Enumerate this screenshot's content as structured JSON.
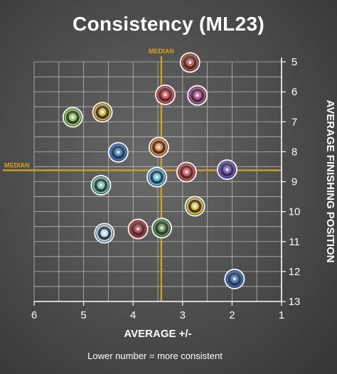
{
  "chart_data": {
    "type": "scatter",
    "title": "Consistency (ML23)",
    "xlabel": "AVERAGE +/-",
    "ylabel": "AVERAGE FINISHING POSITION",
    "note": "Lower number = more consistent",
    "xlim": [
      6,
      1
    ],
    "ylim": [
      13,
      5
    ],
    "x_ticks": [
      "6",
      "5",
      "4",
      "3",
      "2",
      "1"
    ],
    "y_ticks": [
      "5",
      "6",
      "7",
      "8",
      "9",
      "10",
      "11",
      "12",
      "13"
    ],
    "grid": true,
    "median": {
      "x": 3.43,
      "y": 8.62,
      "label": "MEDIAN"
    },
    "points": [
      {
        "x": 2.85,
        "y": 5.02,
        "color": "#c0392b",
        "icon": "helmet-icon"
      },
      {
        "x": 3.35,
        "y": 6.1,
        "color": "#e0303a",
        "icon": "grape-cluster-icon"
      },
      {
        "x": 2.7,
        "y": 6.12,
        "color": "#b33a8a",
        "icon": "hand-pointer-icon"
      },
      {
        "x": 5.22,
        "y": 6.85,
        "color": "#7dc242",
        "icon": "target-icon"
      },
      {
        "x": 4.62,
        "y": 6.68,
        "color": "#d6a21e",
        "icon": "bee-icon"
      },
      {
        "x": 4.3,
        "y": 8.02,
        "color": "#1e6fd9",
        "icon": "ring-dots-icon"
      },
      {
        "x": 3.48,
        "y": 7.85,
        "color": "#e8731e",
        "icon": "wheel-star-icon"
      },
      {
        "x": 2.92,
        "y": 8.68,
        "color": "#e03a3a",
        "icon": "rim-icon"
      },
      {
        "x": 2.1,
        "y": 8.6,
        "color": "#6a3fd0",
        "icon": "power-icon"
      },
      {
        "x": 3.52,
        "y": 8.85,
        "color": "#3fb4e8",
        "icon": "arrow-burst-icon"
      },
      {
        "x": 4.65,
        "y": 9.12,
        "color": "#5ab8a8",
        "icon": "leaf-icon"
      },
      {
        "x": 2.75,
        "y": 9.82,
        "color": "#e6b51a",
        "icon": "m-logo-icon"
      },
      {
        "x": 3.9,
        "y": 10.58,
        "color": "#c0202a",
        "icon": "snowflake-red-icon"
      },
      {
        "x": 3.42,
        "y": 10.55,
        "color": "#4a8a3a",
        "icon": "atom-icon"
      },
      {
        "x": 4.58,
        "y": 10.72,
        "color": "#a8d4f0",
        "icon": "snowflake-icon"
      },
      {
        "x": 1.95,
        "y": 12.25,
        "color": "#1e5fc8",
        "icon": "lightning-icon"
      }
    ]
  }
}
